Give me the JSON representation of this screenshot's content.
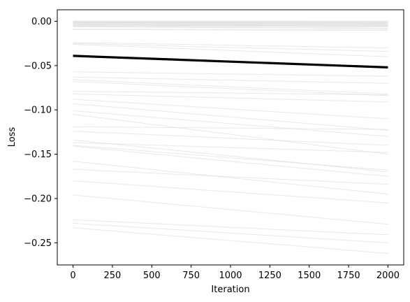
{
  "chart_data": {
    "type": "line",
    "title": "",
    "xlabel": "Iteration",
    "ylabel": "Loss",
    "xlim": [
      -100,
      2100
    ],
    "ylim": [
      -0.275,
      0.013
    ],
    "xticks": [
      0,
      250,
      500,
      750,
      1000,
      1250,
      1500,
      1750,
      2000
    ],
    "xtick_labels": [
      "0",
      "250",
      "500",
      "750",
      "1000",
      "1250",
      "1500",
      "1750",
      "2000"
    ],
    "yticks": [
      0.0,
      -0.05,
      -0.1,
      -0.15,
      -0.2,
      -0.25
    ],
    "ytick_labels": [
      "0.00",
      "−0.05",
      "−0.10",
      "−0.15",
      "−0.20",
      "−0.25"
    ],
    "grid": false,
    "legend": "none",
    "background_color": "#d9d9d9",
    "highlight_color": "#000000",
    "x": [
      0,
      2000
    ],
    "highlight_series": {
      "start": -0.039,
      "end": -0.052
    },
    "background_series": [
      {
        "start": 0.0,
        "end": 0.0
      },
      {
        "start": -0.001,
        "end": -0.001
      },
      {
        "start": -0.001,
        "end": -0.002
      },
      {
        "start": -0.002,
        "end": -0.003
      },
      {
        "start": -0.003,
        "end": -0.004
      },
      {
        "start": -0.004,
        "end": -0.005
      },
      {
        "start": -0.005,
        "end": -0.006
      },
      {
        "start": -0.006,
        "end": -0.008
      },
      {
        "start": -0.009,
        "end": -0.01
      },
      {
        "start": -0.024,
        "end": -0.03
      },
      {
        "start": -0.025,
        "end": -0.034
      },
      {
        "start": -0.026,
        "end": -0.04
      },
      {
        "start": -0.057,
        "end": -0.062
      },
      {
        "start": -0.063,
        "end": -0.07
      },
      {
        "start": -0.066,
        "end": -0.082
      },
      {
        "start": -0.068,
        "end": -0.084
      },
      {
        "start": -0.079,
        "end": -0.083
      },
      {
        "start": -0.082,
        "end": -0.091
      },
      {
        "start": -0.088,
        "end": -0.11
      },
      {
        "start": -0.093,
        "end": -0.123
      },
      {
        "start": -0.101,
        "end": -0.13
      },
      {
        "start": -0.105,
        "end": -0.15
      },
      {
        "start": -0.119,
        "end": -0.122
      },
      {
        "start": -0.124,
        "end": -0.14
      },
      {
        "start": -0.134,
        "end": -0.17
      },
      {
        "start": -0.137,
        "end": -0.148
      },
      {
        "start": -0.14,
        "end": -0.168
      },
      {
        "start": -0.141,
        "end": -0.175
      },
      {
        "start": -0.158,
        "end": -0.195
      },
      {
        "start": -0.167,
        "end": -0.184
      },
      {
        "start": -0.18,
        "end": -0.205
      },
      {
        "start": -0.196,
        "end": -0.229
      },
      {
        "start": -0.224,
        "end": -0.241
      },
      {
        "start": -0.228,
        "end": -0.25
      },
      {
        "start": -0.233,
        "end": -0.262
      }
    ]
  }
}
